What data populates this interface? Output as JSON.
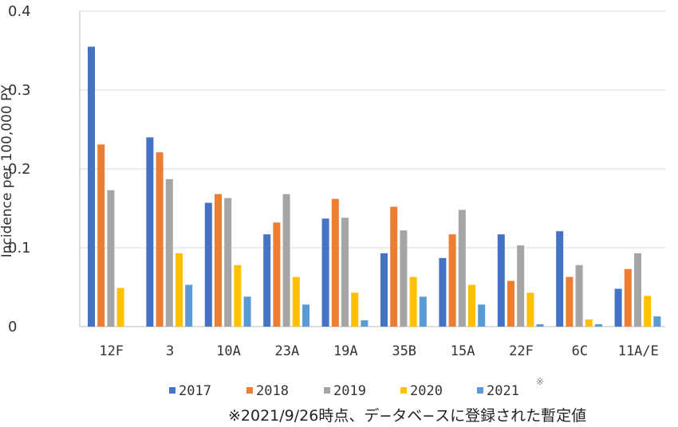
{
  "chart_data": {
    "type": "bar",
    "ylabel": "Incidence per 100,000 PY",
    "ylim": [
      0,
      0.4
    ],
    "yticks": [
      "0",
      "0.1",
      "0.2",
      "0.3",
      "0.4"
    ],
    "grid": true,
    "legend_position": "bottom",
    "categories": [
      "12F",
      "3",
      "10A",
      "23A",
      "19A",
      "35B",
      "15A",
      "22F",
      "6C",
      "11A/E"
    ],
    "series": [
      {
        "name": "2017",
        "color": "#4472C4",
        "values": [
          0.355,
          0.24,
          0.157,
          0.117,
          0.137,
          0.093,
          0.087,
          0.117,
          0.121,
          0.048
        ]
      },
      {
        "name": "2018",
        "color": "#ED7D31",
        "values": [
          0.231,
          0.221,
          0.168,
          0.132,
          0.162,
          0.152,
          0.117,
          0.058,
          0.063,
          0.073
        ]
      },
      {
        "name": "2019",
        "color": "#A5A5A5",
        "values": [
          0.173,
          0.187,
          0.163,
          0.168,
          0.138,
          0.122,
          0.148,
          0.103,
          0.078,
          0.093
        ]
      },
      {
        "name": "2020",
        "color": "#FFC000",
        "values": [
          0.049,
          0.093,
          0.078,
          0.063,
          0.043,
          0.063,
          0.053,
          0.043,
          0.009,
          0.039
        ]
      },
      {
        "name": "2021",
        "color": "#5B9BD5",
        "values": [
          0,
          0.053,
          0.038,
          0.028,
          0.008,
          0.038,
          0.028,
          0.003,
          0.003,
          0.013
        ]
      }
    ],
    "mark_symbol": "※",
    "footnote": "※2021/9/26時点、デ−タベ−スに登録された暫定値"
  }
}
